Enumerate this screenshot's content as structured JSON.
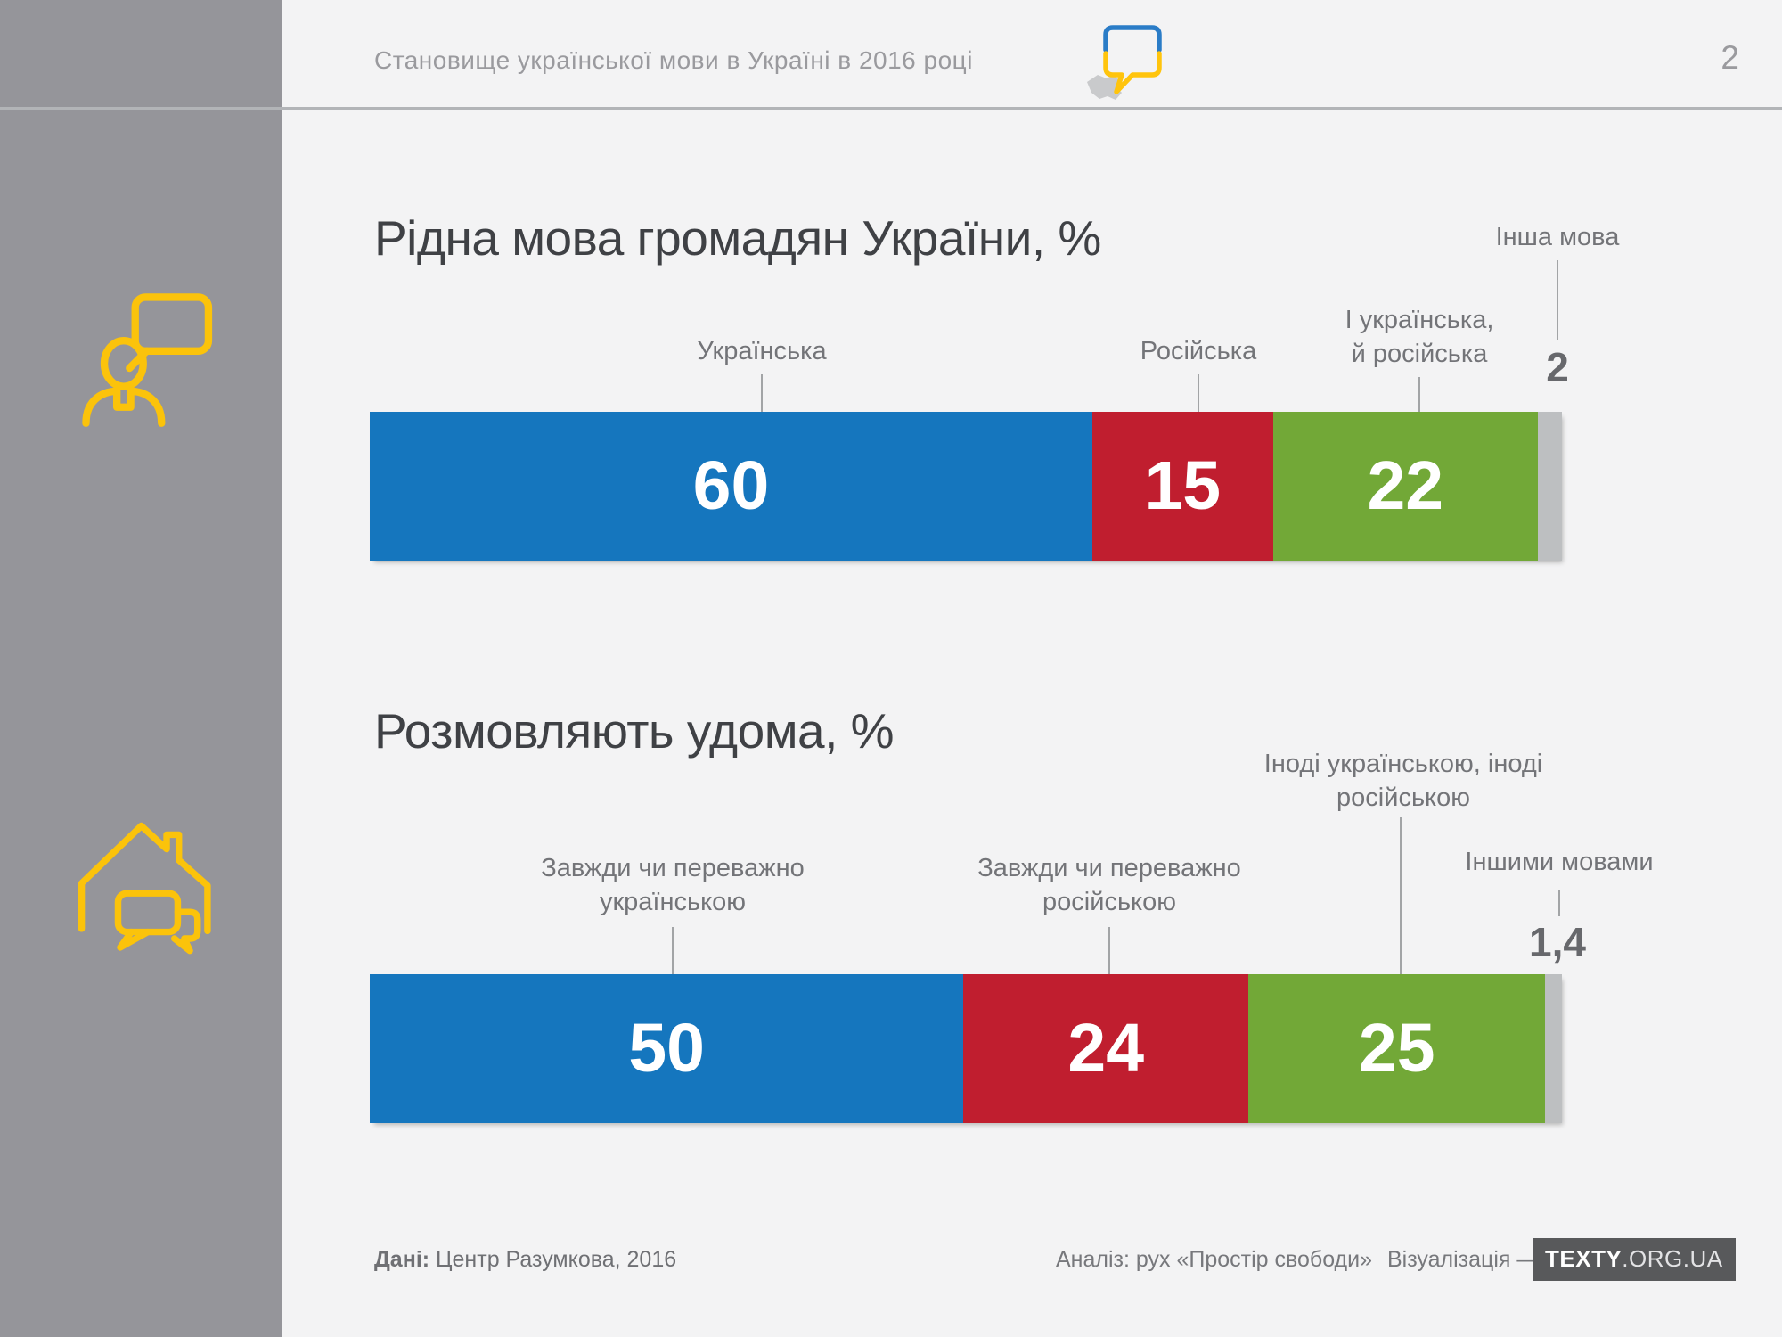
{
  "header": {
    "title": "Становище української мови в Україні в 2016 році",
    "page_number": "2"
  },
  "sidebar": {
    "icons": [
      "person-speech-icon",
      "home-conversation-icon"
    ]
  },
  "colors": {
    "sidebar": "#95959A",
    "background": "#F3F3F4",
    "accent_yellow": "#FBC30B",
    "title_text": "#3F4145",
    "label_text": "#737478",
    "segments": [
      "#1576BE",
      "#C01E2F",
      "#72A837",
      "#BDBFC1"
    ]
  },
  "chart_data": [
    {
      "type": "bar",
      "orientation": "horizontal-stacked",
      "title": "Рідна мова громадян України, %",
      "categories": [
        "Українська",
        "Російська",
        "І українська, й російська",
        "Інша мова"
      ],
      "values": [
        60,
        15,
        22,
        2
      ],
      "value_labels": [
        "60",
        "15",
        "22",
        "2"
      ],
      "unit": "%",
      "legend_position": "labels-above-with-connectors"
    },
    {
      "type": "bar",
      "orientation": "horizontal-stacked",
      "title": "Розмовляють удома, %",
      "categories": [
        "Завжди чи переважно українською",
        "Завжди чи переважно російською",
        "Іноді українською, іноді російською",
        "Іншими мовами"
      ],
      "values": [
        50,
        24,
        25,
        1.4
      ],
      "value_labels": [
        "50",
        "24",
        "25",
        "1,4"
      ],
      "unit": "%",
      "legend_position": "labels-above-with-connectors"
    }
  ],
  "footer": {
    "source_label": "Дані:",
    "source_text": " Центр Разумкова, 2016",
    "analysis_text": "Аналіз: рух «Простір свободи»",
    "visualization_label": "Візуалізація —",
    "brand_primary": "TEXTY",
    "brand_secondary": ".ORG.UA"
  }
}
